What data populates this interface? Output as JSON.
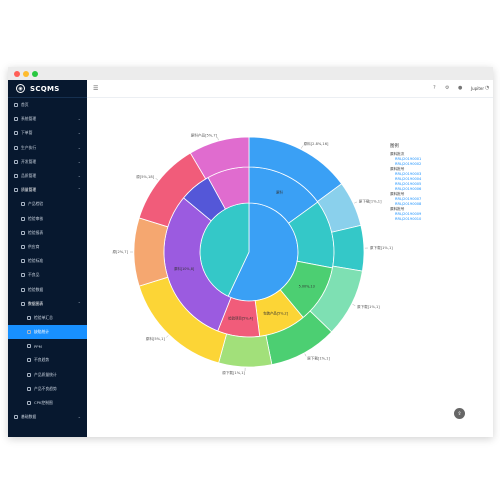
{
  "window": {
    "buttons": [
      {
        "name": "close",
        "color": "#ff5f57"
      },
      {
        "name": "minimize",
        "color": "#febc2e"
      },
      {
        "name": "maximize",
        "color": "#28c840"
      }
    ]
  },
  "app": {
    "name": "SCQMS"
  },
  "sidebar": {
    "items": [
      {
        "label": "首页",
        "level": 0,
        "state": ""
      },
      {
        "label": "系统管理",
        "level": 0,
        "state": "",
        "arrow": "⌄"
      },
      {
        "label": "下单管",
        "level": 0,
        "state": "",
        "arrow": "⌄"
      },
      {
        "label": "生产执行",
        "level": 0,
        "state": "",
        "arrow": "⌄"
      },
      {
        "label": "开发管理",
        "level": 0,
        "state": "",
        "arrow": "⌄"
      },
      {
        "label": "品质管理",
        "level": 0,
        "state": "",
        "arrow": "⌄"
      },
      {
        "label": "质量管理",
        "level": 0,
        "state": "open",
        "arrow": "⌃"
      },
      {
        "label": "产品检验",
        "level": 1,
        "state": ""
      },
      {
        "label": "检验审核",
        "level": 1,
        "state": ""
      },
      {
        "label": "检验报表",
        "level": 1,
        "state": ""
      },
      {
        "label": "供应商",
        "level": 1,
        "state": ""
      },
      {
        "label": "检验标准",
        "level": 1,
        "state": ""
      },
      {
        "label": "不良品",
        "level": 1,
        "state": ""
      },
      {
        "label": "检验数据",
        "level": 1,
        "state": ""
      },
      {
        "label": "数据图表",
        "level": 1,
        "state": "open",
        "arrow": "⌃"
      },
      {
        "label": "检验单汇总",
        "level": 2,
        "state": ""
      },
      {
        "label": "缺陷统计",
        "level": 2,
        "state": "active"
      },
      {
        "label": "PPM",
        "level": 2,
        "state": ""
      },
      {
        "label": "不良趋势",
        "level": 2,
        "state": ""
      },
      {
        "label": "产品质量统计",
        "level": 2,
        "state": ""
      },
      {
        "label": "产品不良趋势",
        "level": 2,
        "state": ""
      },
      {
        "label": "CPK控制图",
        "level": 2,
        "state": ""
      },
      {
        "label": "基础数据",
        "level": 0,
        "state": "",
        "arrow": "⌄"
      }
    ]
  },
  "topbar": {
    "menu_icon": "☰",
    "icons": [
      "?",
      "⚙",
      "🔔"
    ],
    "user_name": "Jupiter"
  },
  "legend": {
    "title": "图例",
    "groups": [
      {
        "label": "原料批次",
        "items": [
          "RRLJ20190001",
          "RRLJ20190002"
        ]
      },
      {
        "label": "原料批号",
        "items": [
          "RRLJ20190003",
          "RRLJ20190004",
          "RRLJ20190005",
          "RRLJ20190006"
        ]
      },
      {
        "label": "原料批号",
        "items": [
          "RRLJ20190007",
          "RRLJ20190008"
        ]
      },
      {
        "label": "原料批号",
        "items": [
          "RRLJ20190009",
          "RRLJ20190010"
        ]
      }
    ]
  },
  "fab_icon": "⇪",
  "chart_data": {
    "type": "sunburst",
    "rings": [
      {
        "name": "inner",
        "slices": [
          {
            "label": "",
            "value": 57,
            "color": "#3aa0f5"
          },
          {
            "label": "",
            "value": 43,
            "color": "#34c8c8"
          }
        ]
      },
      {
        "name": "middle",
        "slices": [
          {
            "label": "原料",
            "value": 15,
            "color": "#3aa0f5"
          },
          {
            "label": "",
            "value": 13,
            "color": "#34c8c8"
          },
          {
            "label": "5.00%,13",
            "value": 11,
            "color": "#4ccf72"
          },
          {
            "label": "包装产品[5%,2]",
            "value": 9,
            "color": "#fcd536"
          },
          {
            "label": "检验项目[5%,4]",
            "value": 8,
            "color": "#f15c7a"
          },
          {
            "label": "原料[10%,8]",
            "value": 30,
            "color": "#9b5be0"
          },
          {
            "label": "",
            "value": 6,
            "color": "#5457d8"
          },
          {
            "label": "",
            "value": 8,
            "color": "#e06ccf"
          }
        ]
      },
      {
        "name": "outer",
        "slices": [
          {
            "label": "原料[2.8%,16]",
            "value": 14,
            "color": "#3aa0f5"
          },
          {
            "label": "原下载[1%,1]",
            "value": 6,
            "color": "#8ad0ec"
          },
          {
            "label": "原下载[1%,1]",
            "value": 6,
            "color": "#34c8c8"
          },
          {
            "label": "原下载[1%,1]",
            "value": 9,
            "color": "#7ee0b3"
          },
          {
            "label": "原下载[1%,1]",
            "value": 9,
            "color": "#4ccf72"
          },
          {
            "label": "原下载[1%,1]",
            "value": 7,
            "color": "#a2e07a"
          },
          {
            "label": "原料[5%,1]",
            "value": 15,
            "color": "#fcd536"
          },
          {
            "label": "原[2%,7]",
            "value": 9,
            "color": "#f5a770"
          },
          {
            "label": "原[5%,18]",
            "value": 11,
            "color": "#f15c7a"
          },
          {
            "label": "原料产品[5%,7]",
            "value": 8,
            "color": "#e06ccf"
          }
        ]
      }
    ]
  }
}
